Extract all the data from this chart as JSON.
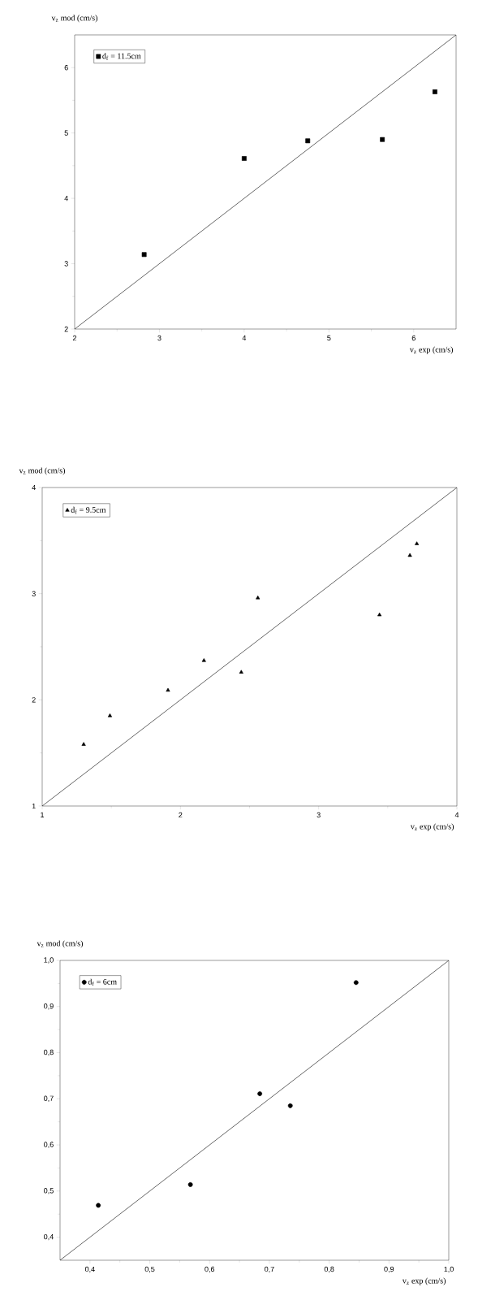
{
  "chart_data": [
    {
      "type": "scatter",
      "xlabel": "v$_{z}$ exp (cm/s)",
      "ylabel": "v$_{z}$ mod (cm/s)",
      "xlim": [
        2,
        6.5
      ],
      "ylim": [
        2,
        6.5
      ],
      "xticks": [
        2,
        3,
        4,
        5,
        6
      ],
      "yticks": [
        2,
        3,
        4,
        5,
        6
      ],
      "legend": "top left",
      "grid": false,
      "series": [
        {
          "name": "d$_{f}$ = 11.5cm",
          "color": "#000000",
          "marker": "square",
          "x": [
            2.82,
            4.0,
            4.75,
            5.63,
            6.25
          ],
          "values": [
            3.14,
            4.61,
            4.88,
            4.9,
            5.63
          ]
        },
        {
          "type": "line",
          "color": "#000000",
          "marker": "none",
          "x": [
            2,
            6.5
          ],
          "values": [
            2,
            6.5
          ]
        }
      ]
    },
    {
      "type": "scatter",
      "xlabel": "v$_{z}$ exp (cm/s)",
      "ylabel": "v$_{z}$ mod (cm/s)",
      "xlim": [
        1,
        4
      ],
      "ylim": [
        1,
        4
      ],
      "xticks": [
        1,
        2,
        3,
        4
      ],
      "yticks": [
        1,
        2,
        3,
        4
      ],
      "legend": "top left",
      "grid": false,
      "series": [
        {
          "name": "d$_{f}$ = 9.5cm",
          "color": "#000000",
          "marker": "triangle",
          "x": [
            1.3,
            1.49,
            1.91,
            2.17,
            2.44,
            2.56,
            3.44,
            3.66,
            3.71
          ],
          "values": [
            1.58,
            1.85,
            2.09,
            2.37,
            2.26,
            2.96,
            2.8,
            3.36,
            3.47
          ]
        },
        {
          "type": "line",
          "color": "#000000",
          "marker": "none",
          "x": [
            1,
            4
          ],
          "values": [
            1,
            4
          ]
        }
      ]
    },
    {
      "type": "scatter",
      "xlabel": "v$_{z}$ exp (cm/s)",
      "ylabel": "v$_{z}$ mod (cm/s)",
      "xlim": [
        0.35,
        1.0
      ],
      "ylim": [
        0.35,
        1.0
      ],
      "xticks": [
        {
          "value": 0.4,
          "label": "0,4"
        },
        {
          "value": 0.5,
          "label": "0,5"
        },
        {
          "value": 0.6,
          "label": "0,6"
        },
        {
          "value": 0.7,
          "label": "0,7"
        },
        {
          "value": 0.8,
          "label": "0,8"
        },
        {
          "value": 0.9,
          "label": "0,9"
        },
        {
          "value": 1.0,
          "label": "1,0"
        }
      ],
      "yticks": [
        {
          "value": 0.4,
          "label": "0,4"
        },
        {
          "value": 0.5,
          "label": "0,5"
        },
        {
          "value": 0.6,
          "label": "0,6"
        },
        {
          "value": 0.7,
          "label": "0,7"
        },
        {
          "value": 0.8,
          "label": "0,8"
        },
        {
          "value": 0.9,
          "label": "0,9"
        },
        {
          "value": 1.0,
          "label": "1,0"
        }
      ],
      "legend": "top left",
      "grid": false,
      "series": [
        {
          "name": "d$_{f}$ = 6cm",
          "color": "#000000",
          "marker": "circle",
          "x": [
            0.414,
            0.568,
            0.684,
            0.735,
            0.845
          ],
          "values": [
            0.469,
            0.514,
            0.711,
            0.685,
            0.952
          ]
        },
        {
          "type": "line",
          "color": "#000000",
          "marker": "none",
          "x": [
            0.35,
            1.0
          ],
          "values": [
            0.35,
            1.0
          ]
        }
      ]
    }
  ]
}
